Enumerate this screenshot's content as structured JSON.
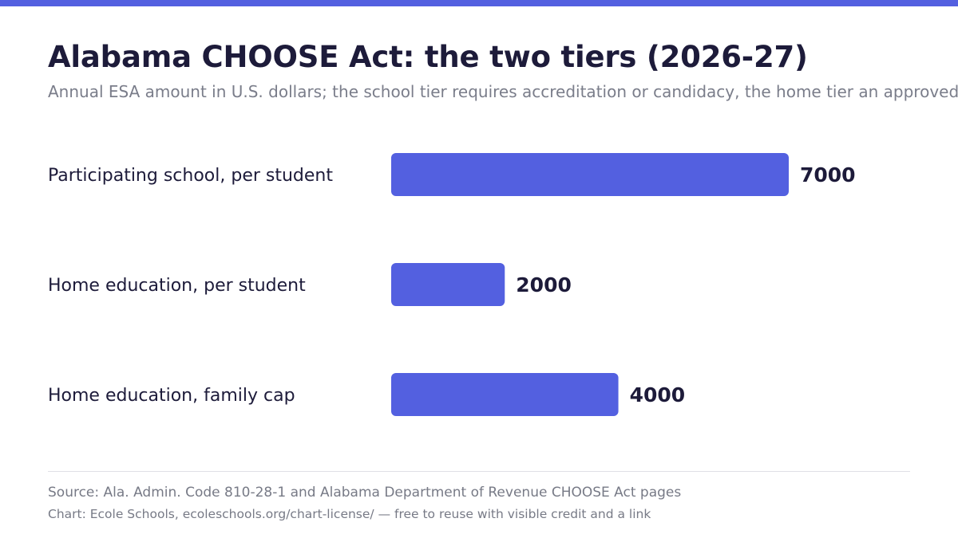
{
  "header": {
    "title": "Alabama CHOOSE Act: the two tiers (2026-27)",
    "subtitle": "Annual ESA amount in U.S. dollars; the school tier requires accreditation or candidacy, the home tier an approved prov"
  },
  "footer": {
    "source": "Source: Ala. Admin. Code 810-28-1 and Alabama Department of Revenue CHOOSE Act pages",
    "credit": "Chart: Ecole Schools, ecoleschools.org/chart-license/ — free to reuse with visible credit and a link"
  },
  "colors": {
    "accent": "#5360e0",
    "bar": "#5360e0",
    "title": "#1d1b3a",
    "label": "#1d1b3a",
    "muted": "#7a7d8a"
  },
  "chart_data": {
    "type": "bar",
    "orientation": "horizontal",
    "title": "Alabama CHOOSE Act: the two tiers (2026-27)",
    "subtitle": "Annual ESA amount in U.S. dollars; the school tier requires accreditation or candidacy, the home tier an approved prov",
    "categories": [
      "Participating school, per student",
      "Home education, per student",
      "Home education, family cap"
    ],
    "values": [
      7000,
      2000,
      4000
    ],
    "xlabel": "",
    "ylabel": "",
    "xlim": [
      0,
      7000
    ],
    "grid": false,
    "legend": "none",
    "data_labels": true
  }
}
